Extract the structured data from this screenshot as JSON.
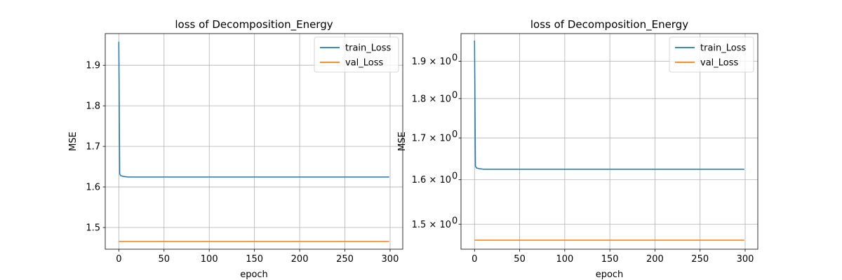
{
  "chart_data": [
    {
      "type": "line",
      "title": "loss of Decomposition_Energy",
      "xlabel": "epoch",
      "ylabel": "MSE",
      "yscale": "linear",
      "xlim": [
        -15,
        314
      ],
      "ylim": [
        1.4465,
        1.978
      ],
      "xticks": [
        0,
        50,
        100,
        150,
        200,
        250,
        300
      ],
      "xtick_labels": [
        "0",
        "50",
        "100",
        "150",
        "200",
        "250",
        "300"
      ],
      "yticks": [
        1.5,
        1.6,
        1.7,
        1.8,
        1.9
      ],
      "ytick_labels": [
        "1.5",
        "1.6",
        "1.7",
        "1.8",
        "1.9"
      ],
      "grid": true,
      "legend": "upper right",
      "series": [
        {
          "name": "train_Loss",
          "color": "#1f77b4",
          "x": [
            0,
            1,
            2,
            3,
            5,
            10,
            20,
            50,
            100,
            150,
            200,
            250,
            299
          ],
          "y": [
            1.958,
            1.632,
            1.628,
            1.627,
            1.626,
            1.6245,
            1.6245,
            1.6245,
            1.6245,
            1.6245,
            1.6245,
            1.6245,
            1.6245
          ]
        },
        {
          "name": "val_Loss",
          "color": "#ff7f0e",
          "x": [
            0,
            5,
            10,
            50,
            100,
            150,
            200,
            250,
            299
          ],
          "y": [
            1.4655,
            1.4655,
            1.4655,
            1.4655,
            1.4655,
            1.4655,
            1.4655,
            1.4655,
            1.4655
          ]
        }
      ]
    },
    {
      "type": "line",
      "title": "loss of Decomposition_Energy",
      "xlabel": "epoch",
      "ylabel": "MSE",
      "yscale": "log",
      "xlim": [
        -15,
        314
      ],
      "ylim": [
        1.4465,
        1.978
      ],
      "xticks": [
        0,
        50,
        100,
        150,
        200,
        250,
        300
      ],
      "xtick_labels": [
        "0",
        "50",
        "100",
        "150",
        "200",
        "250",
        "300"
      ],
      "yticks": [
        1.5,
        1.6,
        1.7,
        1.8,
        1.9
      ],
      "ytick_labels": [
        "1.5 × 10",
        "1.6 × 10",
        "1.7 × 10",
        "1.8 × 10",
        "1.9 × 10"
      ],
      "ytick_exponent": "0",
      "grid": true,
      "legend": "upper right",
      "series": [
        {
          "name": "train_Loss",
          "color": "#1f77b4",
          "x": [
            0,
            1,
            2,
            3,
            5,
            10,
            20,
            50,
            100,
            150,
            200,
            250,
            299
          ],
          "y": [
            1.958,
            1.632,
            1.628,
            1.627,
            1.626,
            1.6245,
            1.6245,
            1.6245,
            1.6245,
            1.6245,
            1.6245,
            1.6245,
            1.6245
          ]
        },
        {
          "name": "val_Loss",
          "color": "#ff7f0e",
          "x": [
            0,
            5,
            10,
            50,
            100,
            150,
            200,
            250,
            299
          ],
          "y": [
            1.4655,
            1.4655,
            1.4655,
            1.4655,
            1.4655,
            1.4655,
            1.4655,
            1.4655,
            1.4655
          ]
        }
      ]
    }
  ]
}
